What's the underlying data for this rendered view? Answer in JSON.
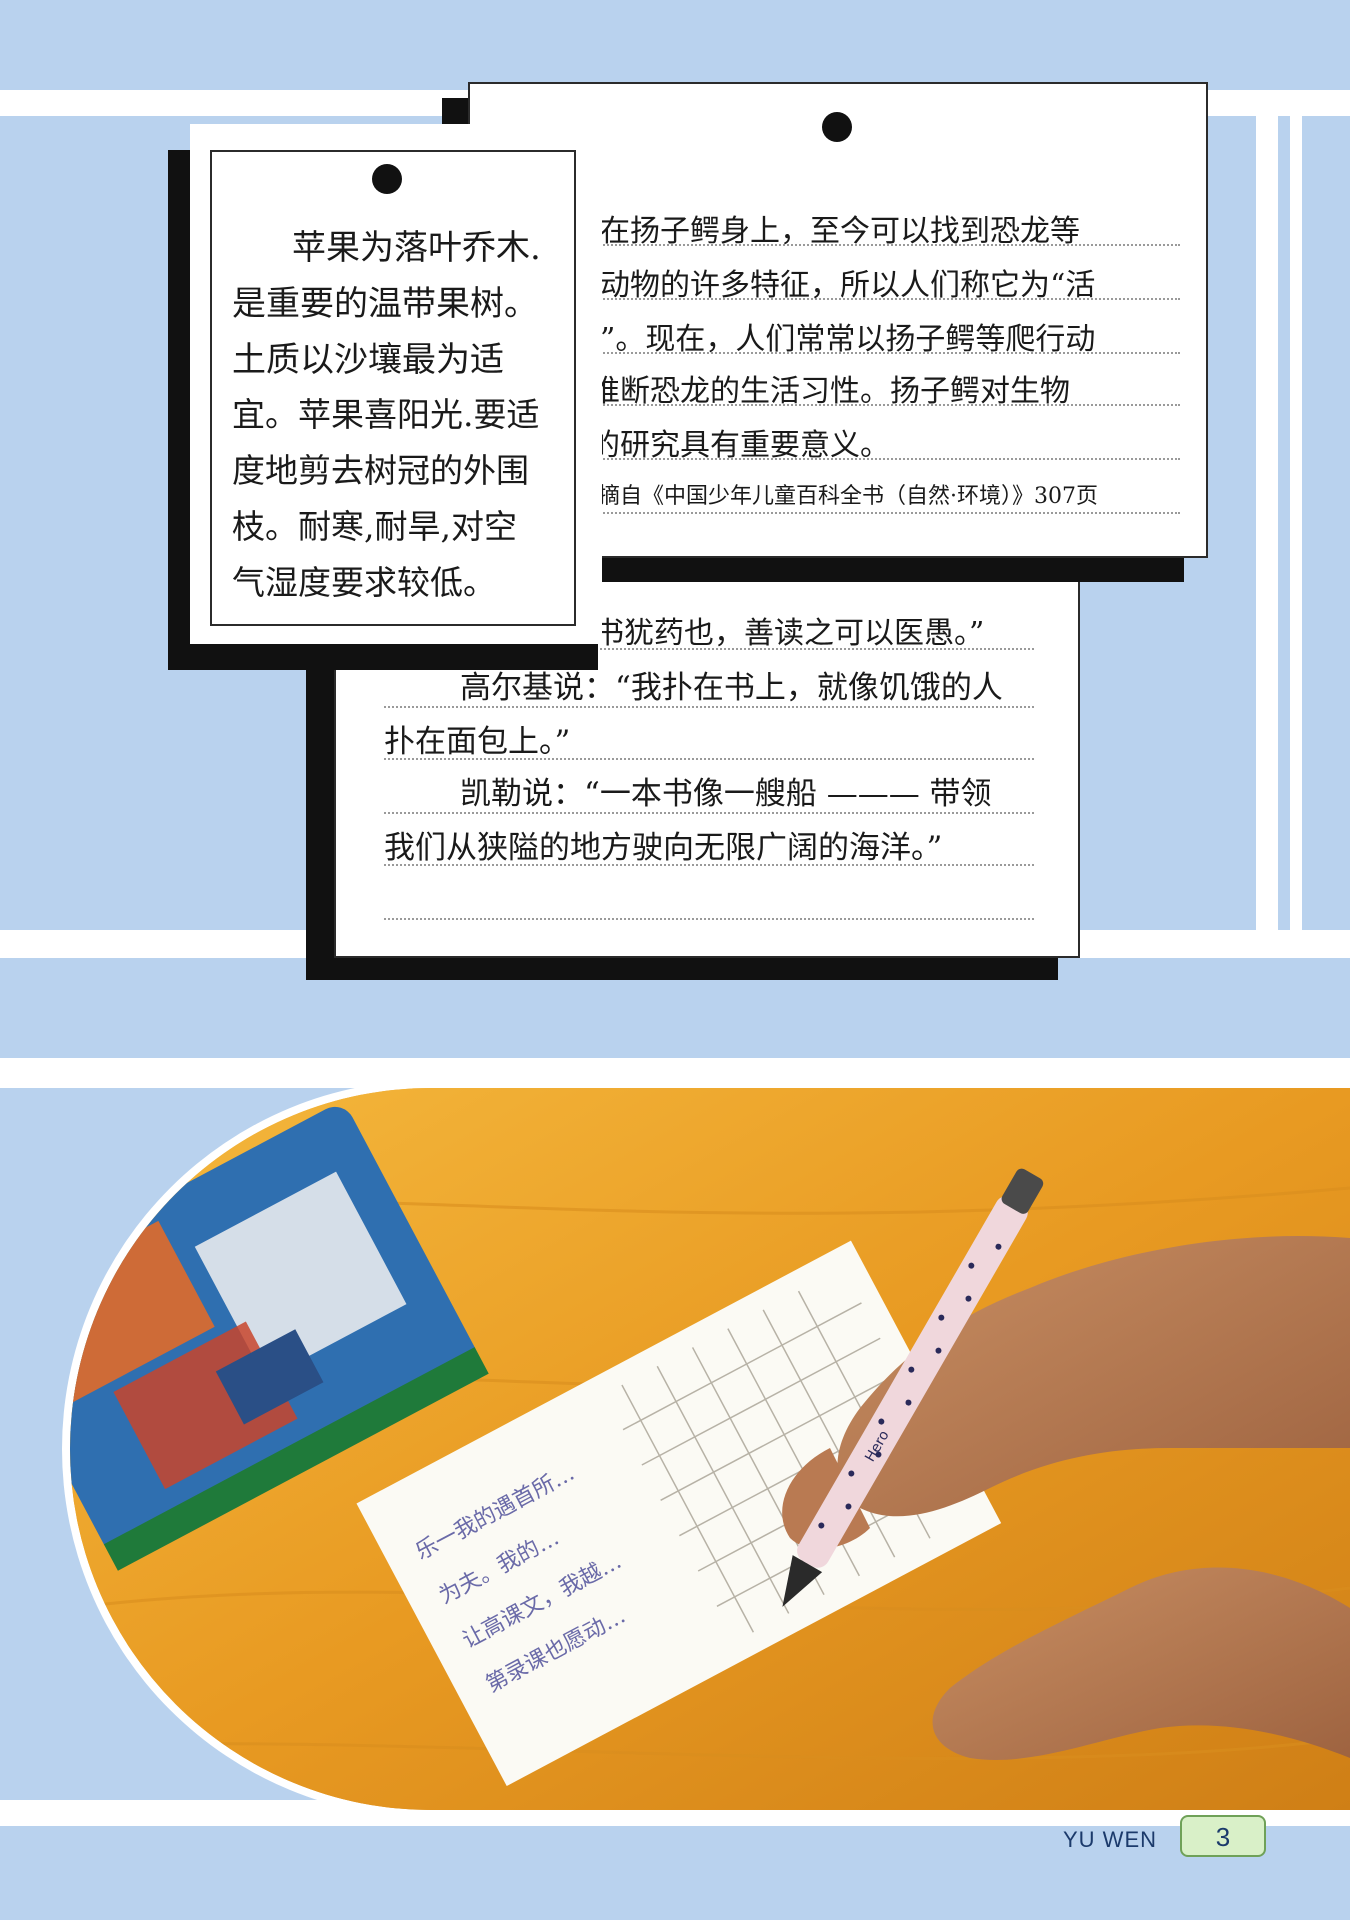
{
  "card_left": {
    "lines": [
      "苹果为落叶乔木.",
      "是重要的温带果树。",
      "土质以沙壤最为适",
      "宜。苹果喜阳光.要适",
      "度地剪去树冠的外围",
      "枝。耐寒,耐旱,对空",
      "气湿度要求较低。"
    ]
  },
  "card_right": {
    "lines": [
      "在扬子鳄身上，至今可以找到恐龙等",
      "动物的许多特征，所以人们称它为“活",
      "”。现在，人们常常以扬子鳄等爬行动",
      "推断恐龙的生活习性。扬子鳄对生物",
      "的研究具有重要意义。"
    ],
    "source": "摘自《中国少年儿童百科全书（自然·环境）》307页"
  },
  "card_bottom": {
    "lines": [
      "书犹药也，善读之可以医愚。”",
      "高尔基说：“我扑在书上，就像饥饿的人",
      "扑在面包上。”",
      "凯勒说：“一本书像一艘船 ——— 带领",
      "我们从狭隘的地方驶向无限广阔的海洋。”"
    ]
  },
  "photo": {
    "notebook_lines": [
      "乐一我的遇首所…",
      "为夫。我的…",
      "让高课文，我越…",
      "第录课也愿动…"
    ],
    "pen_brand": "Hero"
  },
  "footer": {
    "label": "YU WEN",
    "page_number": "3"
  },
  "colors": {
    "background": "#b9d2ee",
    "band": "#ffffff",
    "shadow": "#111111",
    "desk": "#e79a22",
    "badge": "#d9f0c8"
  }
}
